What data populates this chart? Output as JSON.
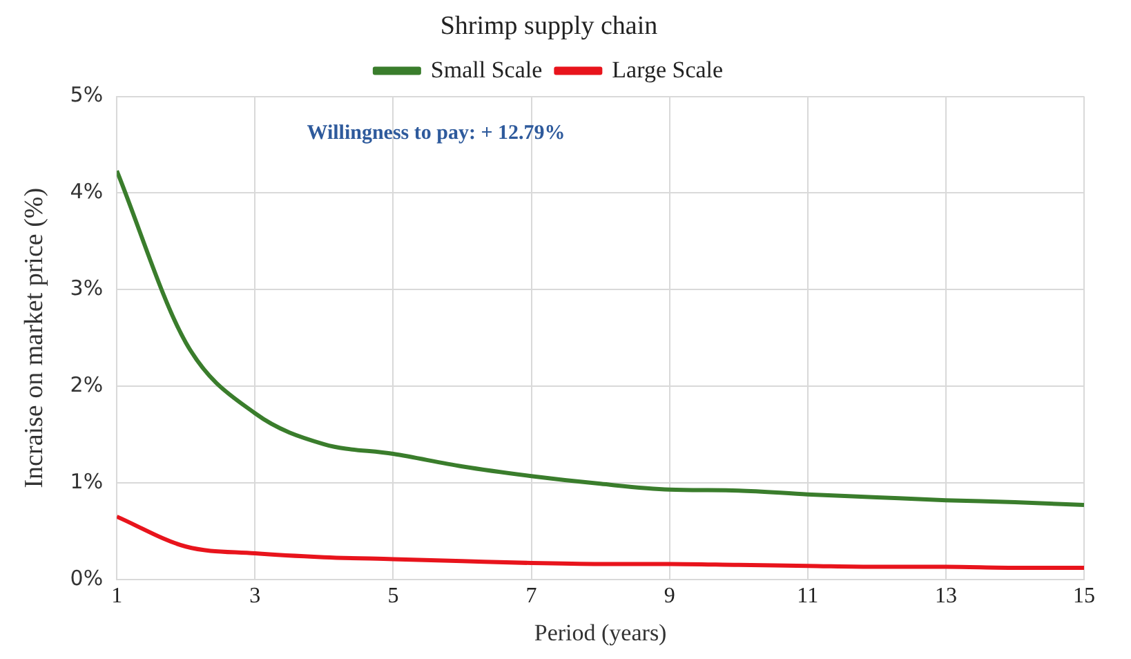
{
  "chart_data": {
    "type": "line",
    "title": "Shrimp supply chain",
    "xlabel": "Period (years)",
    "ylabel": "Incraise on market price (%)",
    "x": [
      1,
      2,
      3,
      4,
      5,
      6,
      7,
      8,
      9,
      10,
      11,
      12,
      13,
      14,
      15
    ],
    "series": [
      {
        "name": "Small Scale",
        "color": "#3a7d2c",
        "values": [
          4.23,
          2.45,
          1.72,
          1.4,
          1.3,
          1.17,
          1.07,
          0.99,
          0.93,
          0.92,
          0.88,
          0.85,
          0.82,
          0.8,
          0.77
        ]
      },
      {
        "name": "Large Scale",
        "color": "#e8141c",
        "values": [
          0.65,
          0.34,
          0.27,
          0.23,
          0.21,
          0.19,
          0.17,
          0.16,
          0.16,
          0.15,
          0.14,
          0.13,
          0.13,
          0.12,
          0.12
        ]
      }
    ],
    "xlim": [
      1,
      15
    ],
    "xticks": [
      1,
      3,
      5,
      7,
      9,
      11,
      13,
      15
    ],
    "ylim": [
      0,
      5
    ],
    "yticks": [
      {
        "value": 0,
        "label": "0%"
      },
      {
        "value": 1,
        "label": "1%"
      },
      {
        "value": 2,
        "label": "2%"
      },
      {
        "value": 3,
        "label": "3%"
      },
      {
        "value": 4,
        "label": "4%"
      },
      {
        "value": 5,
        "label": "5%"
      }
    ],
    "annotations": [
      "Willingness to pay: + 12.79%"
    ],
    "grid": true,
    "legend": "top",
    "marker": "none",
    "line_style": "solid"
  }
}
